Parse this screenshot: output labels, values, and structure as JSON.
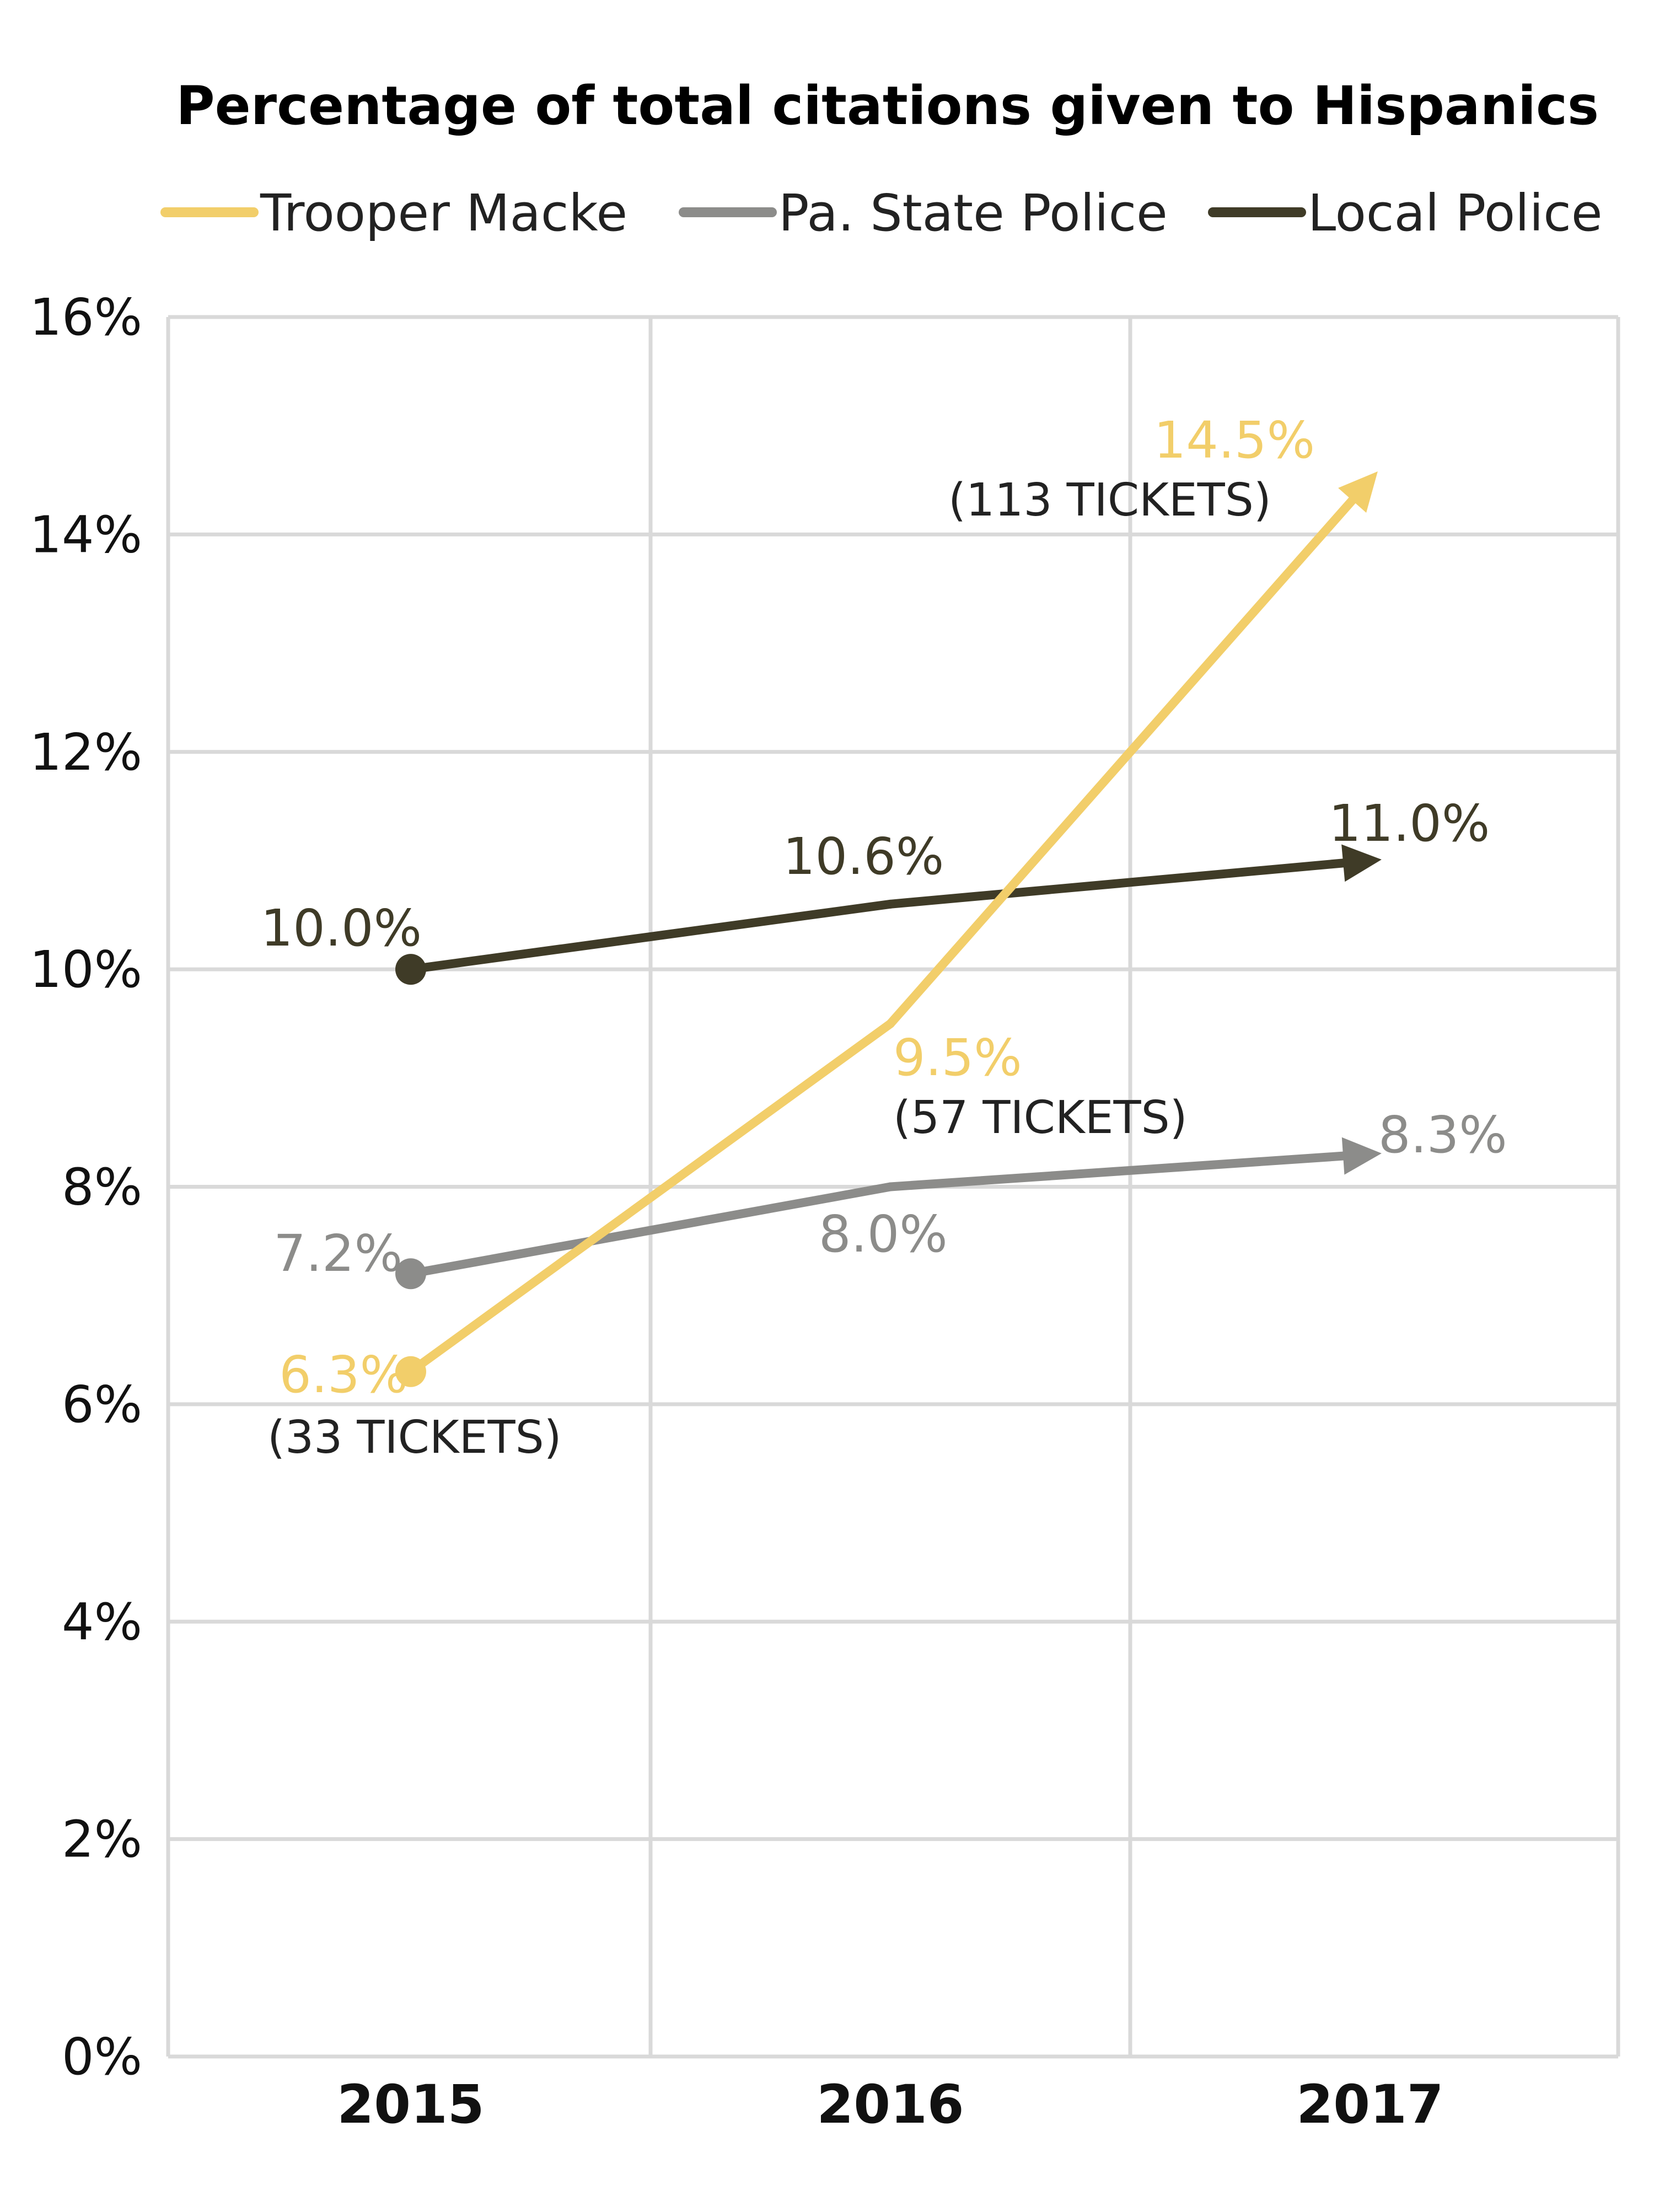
{
  "chart_data": {
    "type": "line",
    "title": "Percentage of total citations given to Hispanics",
    "x": [
      "2015",
      "2016",
      "2017"
    ],
    "ylim": [
      0,
      16
    ],
    "y_ticks": [
      "0%",
      "2%",
      "4%",
      "6%",
      "8%",
      "10%",
      "12%",
      "14%",
      "16%"
    ],
    "y_tick_values": [
      0,
      2,
      4,
      6,
      8,
      10,
      12,
      14,
      16
    ],
    "grid": true,
    "legend_position": "top",
    "series": [
      {
        "name": "Trooper Macke",
        "color": "#f2ce6a",
        "values": [
          6.3,
          9.5,
          14.5
        ],
        "labels": [
          "6.3%",
          "9.5%",
          "14.5%"
        ],
        "notes": [
          "(33 TICKETS)",
          "(57 TICKETS)",
          "(113 TICKETS)"
        ]
      },
      {
        "name": "Pa. State Police",
        "color": "#8c8c8a",
        "values": [
          7.2,
          8.0,
          8.3
        ],
        "labels": [
          "7.2%",
          "8.0%",
          "8.3%"
        ]
      },
      {
        "name": "Local Police",
        "color": "#3f3b27",
        "values": [
          10.0,
          10.6,
          11.0
        ],
        "labels": [
          "10.0%",
          "10.6%",
          "11.0%"
        ]
      }
    ]
  }
}
